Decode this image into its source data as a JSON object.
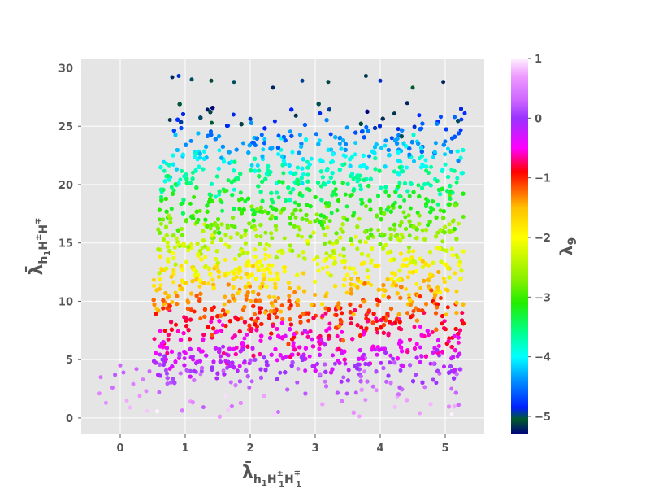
{
  "chart_data": {
    "type": "scatter",
    "title": "",
    "xlabel": "λ̄_{h1 H1± H1∓}",
    "ylabel": "λ̄_{h1 H± H∓}",
    "colorbar_label": "λ9",
    "xlim": [
      -0.6,
      5.6
    ],
    "ylim": [
      -1.4,
      30.8
    ],
    "x_ticks": [
      0,
      1,
      2,
      3,
      4,
      5
    ],
    "y_ticks": [
      0,
      5,
      10,
      15,
      20,
      25,
      30
    ],
    "colorbar": {
      "range": [
        -5.3,
        1.0
      ],
      "ticks": [
        1,
        0,
        -1,
        -2,
        -3,
        -4,
        -5
      ],
      "colormap": "gist_ncar",
      "stops": [
        {
          "v": -5.3,
          "color": "#000080"
        },
        {
          "v": -5.05,
          "color": "#005a2a"
        },
        {
          "v": -4.85,
          "color": "#0020ff"
        },
        {
          "v": -4.4,
          "color": "#0090ff"
        },
        {
          "v": -4.0,
          "color": "#00ffff"
        },
        {
          "v": -3.6,
          "color": "#00ff90"
        },
        {
          "v": -3.1,
          "color": "#22ee00"
        },
        {
          "v": -2.7,
          "color": "#88f000"
        },
        {
          "v": -2.0,
          "color": "#ffff00"
        },
        {
          "v": -1.5,
          "color": "#ffc000"
        },
        {
          "v": -1.1,
          "color": "#ff4000"
        },
        {
          "v": -0.9,
          "color": "#ff0000"
        },
        {
          "v": -0.5,
          "color": "#ff00ff"
        },
        {
          "v": 0.0,
          "color": "#9933ff"
        },
        {
          "v": 0.3,
          "color": "#cc66ff"
        },
        {
          "v": 0.7,
          "color": "#ee99ff"
        },
        {
          "v": 1.0,
          "color": "#fff0ff"
        }
      ]
    },
    "grid": true,
    "legend": "none",
    "marker_size": 2.5,
    "points": [
      {
        "x": -0.3,
        "y": 3.5,
        "c": 0.4
      },
      {
        "x": -0.32,
        "y": 2.1,
        "c": 0.55
      },
      {
        "x": -0.22,
        "y": 1.3,
        "c": 0.6
      },
      {
        "x": -0.12,
        "y": 2.6,
        "c": 0.35
      },
      {
        "x": -0.08,
        "y": 3.7,
        "c": 0.2
      },
      {
        "x": 0.0,
        "y": 4.5,
        "c": 0.3
      },
      {
        "x": 0.05,
        "y": 3.9,
        "c": 0.25
      },
      {
        "x": 0.1,
        "y": 1.5,
        "c": 0.75
      },
      {
        "x": 0.15,
        "y": 0.9,
        "c": 0.8
      },
      {
        "x": 0.2,
        "y": 2.9,
        "c": 0.5
      },
      {
        "x": 0.25,
        "y": 4.2,
        "c": 0.3
      },
      {
        "x": 0.3,
        "y": 1.9,
        "c": 0.65
      },
      {
        "x": 0.35,
        "y": 3.3,
        "c": 0.45
      },
      {
        "x": 0.4,
        "y": 2.3,
        "c": 0.55
      },
      {
        "x": 0.42,
        "y": 0.6,
        "c": 0.85
      },
      {
        "x": 0.45,
        "y": 4.0,
        "c": 0.3
      },
      {
        "x": 0.8,
        "y": 29.2,
        "c": -5.2
      },
      {
        "x": 0.9,
        "y": 29.3,
        "c": -4.9
      },
      {
        "x": 1.1,
        "y": 29.0,
        "c": -5.0
      },
      {
        "x": 1.4,
        "y": 28.9,
        "c": -5.1
      },
      {
        "x": 1.75,
        "y": 28.8,
        "c": -5.0
      },
      {
        "x": 2.35,
        "y": 28.3,
        "c": -5.2
      },
      {
        "x": 2.8,
        "y": 28.9,
        "c": -4.95
      },
      {
        "x": 3.2,
        "y": 28.8,
        "c": -5.1
      },
      {
        "x": 3.78,
        "y": 29.3,
        "c": -5.15
      },
      {
        "x": 4.0,
        "y": 28.9,
        "c": -4.9
      },
      {
        "x": 4.5,
        "y": 28.3,
        "c": -5.05
      },
      {
        "x": 4.97,
        "y": 28.8,
        "c": -5.2
      },
      {
        "x": 5.3,
        "y": 26.1,
        "c": -4.8
      },
      {
        "x": 5.1,
        "y": 0.3,
        "c": 1.0
      }
    ],
    "cloud_rule": "densely populated region 0.45 < x < 5.3, 0 < y < 27 with colour decreasing from about +1 at y≈0 to about -5 at y≈27"
  }
}
